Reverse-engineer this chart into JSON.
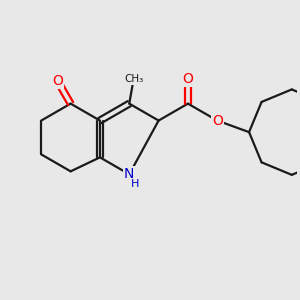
{
  "background_color": "#e8e8e8",
  "bond_color": "#1a1a1a",
  "bond_width": 1.6,
  "atom_colors": {
    "O": "#ff0000",
    "N": "#0000cc"
  },
  "font_size_atom": 10,
  "figsize": [
    3.0,
    3.0
  ],
  "dpi": 100
}
